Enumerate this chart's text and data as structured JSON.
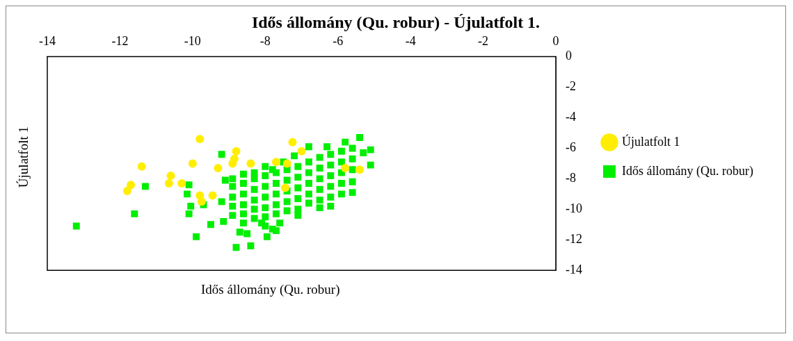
{
  "chart_data": {
    "type": "scatter",
    "title": "Idős állomány (Qu. robur) - Újulatfolt  1.",
    "xlabel": "Idős állomány (Qu. robur)",
    "ylabel": "Újulatfolt 1",
    "xlim": [
      -14,
      0
    ],
    "xticks": [
      -14,
      -12,
      -10,
      -8,
      -6,
      -4,
      -2,
      0
    ],
    "ylim": [
      -14,
      0
    ],
    "yticks": [
      -14,
      -12,
      -10,
      -8,
      -6,
      -4,
      -2,
      0
    ],
    "grid": false,
    "legend": "right",
    "series": [
      {
        "name": "Idős állomány (Qu. robur)",
        "color": "#00ee00",
        "marker": "square",
        "x": [
          -13.2,
          -11.6,
          -11.3,
          -10.1,
          -10.05,
          -9.9,
          -10.1,
          -10.15,
          -9.5,
          -9.15,
          -8.8,
          -8.4,
          -8.7,
          -8.5,
          -7.95,
          -7.8,
          -7.7,
          -8.1,
          -7.6,
          -9.7,
          -9.2,
          -9.1,
          -9.2,
          -5.4,
          -5.1,
          -5.1,
          -5.8,
          -6.3,
          -6.8,
          -7.2,
          -7.5,
          -7.8,
          -8.3,
          -8.6,
          -8.9,
          -8.9,
          -8.9,
          -8.9,
          -8.9,
          -8.6,
          -8.6,
          -8.6,
          -8.6,
          -8.6,
          -8.3,
          -8.3,
          -8.3,
          -8.3,
          -8.3,
          -8.0,
          -8.0,
          -8.0,
          -8.0,
          -8.0,
          -8.0,
          -8.0,
          -7.7,
          -7.7,
          -7.7,
          -7.7,
          -7.7,
          -7.4,
          -7.4,
          -7.4,
          -7.4,
          -7.4,
          -7.1,
          -7.1,
          -7.1,
          -7.1,
          -7.1,
          -7.1,
          -6.8,
          -6.8,
          -6.8,
          -6.8,
          -6.8,
          -6.5,
          -6.5,
          -6.5,
          -6.5,
          -6.5,
          -6.5,
          -6.2,
          -6.2,
          -6.2,
          -6.2,
          -6.2,
          -6.2,
          -5.9,
          -5.9,
          -5.9,
          -5.9,
          -5.9,
          -5.6,
          -5.6,
          -5.6,
          -5.6,
          -5.6,
          -5.3
        ],
        "values": [
          -11.1,
          -10.3,
          -8.5,
          -10.3,
          -9.8,
          -11.8,
          -8.4,
          -9.0,
          -11.0,
          -10.8,
          -12.5,
          -12.4,
          -11.5,
          -11.6,
          -11.8,
          -11.3,
          -11.4,
          -10.9,
          -10.9,
          -9.7,
          -6.4,
          -8.1,
          -9.5,
          -5.3,
          -6.1,
          -7.1,
          -5.6,
          -5.9,
          -5.9,
          -6.5,
          -6.9,
          -7.4,
          -7.6,
          -7.7,
          -8.0,
          -8.5,
          -9.2,
          -9.8,
          -10.4,
          -8.3,
          -9.0,
          -9.7,
          -10.3,
          -10.9,
          -8.0,
          -8.7,
          -9.4,
          -10.0,
          -10.6,
          -7.2,
          -7.8,
          -8.5,
          -9.2,
          -9.9,
          -10.5,
          -11.1,
          -7.6,
          -8.3,
          -9.0,
          -9.7,
          -10.3,
          -7.4,
          -8.1,
          -8.8,
          -9.5,
          -10.1,
          -7.2,
          -7.9,
          -8.6,
          -9.3,
          -10.0,
          -10.4,
          -6.9,
          -7.6,
          -8.3,
          -9.0,
          -9.6,
          -6.6,
          -7.3,
          -8.0,
          -8.7,
          -9.4,
          -9.9,
          -6.4,
          -7.1,
          -7.8,
          -8.5,
          -9.2,
          -9.8,
          -6.2,
          -6.9,
          -7.6,
          -8.3,
          -9.0,
          -6.0,
          -6.7,
          -7.4,
          -8.2,
          -8.9,
          -6.3
        ]
      },
      {
        "name": "Újulatfolt 1",
        "color": "#ffee00",
        "marker": "circle",
        "x": [
          -11.7,
          -11.8,
          -11.4,
          -10.6,
          -10.65,
          -10.3,
          -10.0,
          -9.8,
          -9.8,
          -9.75,
          -9.45,
          -9.3,
          -8.8,
          -8.85,
          -8.9,
          -8.4,
          -7.7,
          -7.4,
          -7.25,
          -7.0,
          -7.45,
          -5.8,
          -5.4
        ],
        "values": [
          -8.4,
          -8.8,
          -7.2,
          -7.8,
          -8.3,
          -8.3,
          -7.0,
          -5.4,
          -9.1,
          -9.5,
          -9.1,
          -7.3,
          -6.2,
          -6.7,
          -7.0,
          -7.0,
          -6.9,
          -7.0,
          -5.6,
          -6.2,
          -8.6,
          -7.3,
          -7.4
        ]
      }
    ]
  }
}
